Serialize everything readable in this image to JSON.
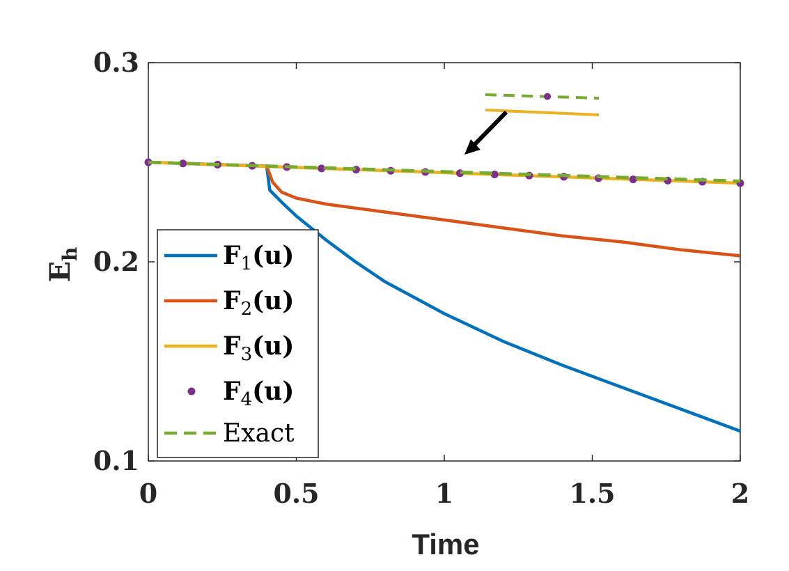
{
  "chart_data": {
    "type": "line",
    "title": "",
    "xlabel": "Time",
    "ylabel": {
      "main": "E",
      "sub": "h"
    },
    "xlim": [
      0,
      2
    ],
    "ylim": [
      0.1,
      0.3
    ],
    "xticks": [
      0,
      0.5,
      1,
      1.5,
      2
    ],
    "xtick_labels": [
      "0",
      "0.5",
      "1",
      "1.5",
      "2"
    ],
    "yticks": [
      0.1,
      0.2,
      0.3
    ],
    "ytick_labels": [
      "0.1",
      "0.2",
      "0.3"
    ],
    "grid": false,
    "legend_position": "bottom-left",
    "series": [
      {
        "name": "F1(u)",
        "label": {
          "bold": "F",
          "sub": "1",
          "tail": "(u)"
        },
        "color": "#0072BD",
        "style": "solid",
        "x": [
          0,
          0.4,
          0.41,
          0.45,
          0.5,
          0.6,
          0.7,
          0.8,
          1.0,
          1.2,
          1.4,
          1.6,
          1.8,
          2.0
        ],
        "y": [
          0.25,
          0.248,
          0.236,
          0.23,
          0.223,
          0.211,
          0.2,
          0.19,
          0.174,
          0.16,
          0.148,
          0.137,
          0.126,
          0.115
        ]
      },
      {
        "name": "F2(u)",
        "label": {
          "bold": "F",
          "sub": "2",
          "tail": "(u)"
        },
        "color": "#D95319",
        "style": "solid",
        "x": [
          0,
          0.4,
          0.42,
          0.45,
          0.5,
          0.6,
          0.8,
          1.0,
          1.2,
          1.4,
          1.6,
          1.8,
          2.0
        ],
        "y": [
          0.25,
          0.248,
          0.24,
          0.235,
          0.232,
          0.229,
          0.225,
          0.221,
          0.217,
          0.213,
          0.21,
          0.206,
          0.203
        ]
      },
      {
        "name": "F3(u)",
        "label": {
          "bold": "F",
          "sub": "3",
          "tail": "(u)"
        },
        "color": "#EDB120",
        "style": "solid",
        "x": [
          0,
          2
        ],
        "y": [
          0.25,
          0.2395
        ]
      },
      {
        "name": "F4(u)",
        "label": {
          "bold": "F",
          "sub": "4",
          "tail": "(u)"
        },
        "color": "#7E2F8E",
        "style": "markers",
        "x": [
          0,
          0.117,
          0.234,
          0.351,
          0.468,
          0.585,
          0.702,
          0.819,
          0.936,
          1.053,
          1.17,
          1.287,
          1.404,
          1.521,
          1.638,
          1.755,
          1.872,
          2.0
        ],
        "y": [
          0.25,
          0.2494,
          0.2488,
          0.2482,
          0.2476,
          0.2469,
          0.2463,
          0.2457,
          0.2451,
          0.2445,
          0.2439,
          0.2433,
          0.2427,
          0.242,
          0.2414,
          0.2408,
          0.2402,
          0.2395
        ]
      },
      {
        "name": "Exact",
        "label": {
          "bold": "",
          "sub": "",
          "tail": "Exact"
        },
        "color": "#77AC30",
        "style": "dashed",
        "x": [
          0,
          2
        ],
        "y": [
          0.25,
          0.2405
        ]
      }
    ],
    "annotation": {
      "type": "zoom-inset-arrow",
      "target_x": 1.05,
      "target_y": 0.2455
    }
  }
}
